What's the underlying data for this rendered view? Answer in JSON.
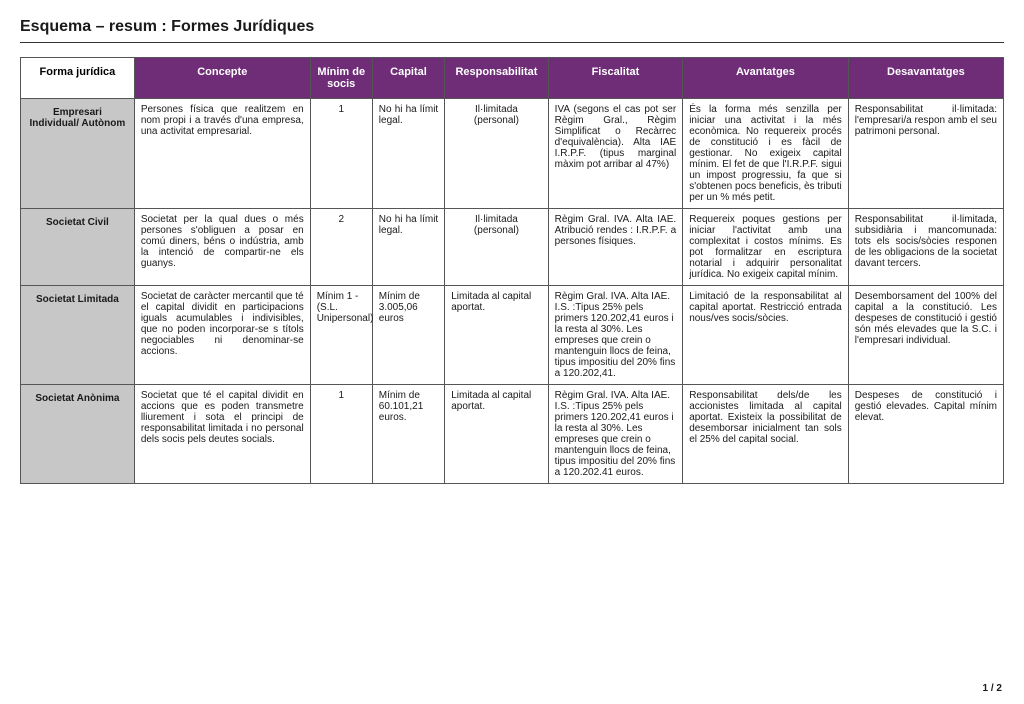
{
  "title": "Esquema – resum : Formes Jurídiques",
  "pager": "1 / 2",
  "headers": {
    "forma": "Forma jurídica",
    "concepte": "Concepte",
    "minim": "Mínim de socis",
    "capital": "Capital",
    "respons": "Responsabilitat",
    "fiscal": "Fiscalitat",
    "avant": "Avantatges",
    "desav": "Desavantatges"
  },
  "rows": [
    {
      "forma": "Empresari Individual/ Autònom",
      "concepte": "Persones física que realitzem en nom propi i a través d'una empresa, una activitat empresarial.",
      "minim": "1",
      "capital": "No hi ha límit legal.",
      "respons": "Il·limitada (personal)",
      "fiscal": "IVA (segons el cas pot ser Règim Gral., Règim Simplificat o Recàrrec d'equivalència). Alta IAE I.R.P.F. (tipus marginal màxim pot arribar al 47%)",
      "avant": "És la forma més senzilla per iniciar una activitat i la més econòmica. No requereix procés de constitució i es fàcil de gestionar. No exigeix capital mínim. El fet de que l'I.R.P.F. sigui un impost progressiu, fa que si s'obtenen pocs beneficis, ès tributi per un % més petit.",
      "desav": "Responsabilitat il·limitada: l'empresari/a respon amb el seu patrimoni personal."
    },
    {
      "forma": "Societat Civil",
      "concepte": "Societat per la qual dues o més persones s'obliguen a posar en comú diners, béns o indústria, amb la intenció de compartir-ne els guanys.",
      "minim": "2",
      "capital": "No hi ha límit legal.",
      "respons": "Il·limitada (personal)",
      "fiscal": "Règim Gral. IVA. Alta IAE. Atribució rendes : I.R.P.F. a persones físiques.",
      "avant": "Requereix poques gestions per iniciar l'activitat amb una complexitat i costos mínims. Es pot formalitzar en escriptura notarial i adquirir personalitat jurídica. No exigeix capital mínim.",
      "desav": "Responsabilitat il·limitada, subsidiària i mancomunada: tots els socis/sòcies responen de les obligacions de la societat davant tercers."
    },
    {
      "forma": "Societat Limitada",
      "concepte": "Societat de caràcter mercantil que té el capital dividit en participacions iguals acumulables i indivisibles, que no poden incorporar-se s títols negociables ni denominar-se accions.",
      "minim": "Mínim 1 - (S.L. Unipersonal)",
      "capital": "Mínim de 3.005,06 euros",
      "respons": "Limitada al capital aportat.",
      "fiscal": "Règim Gral. IVA. Alta IAE. I.S. :Tipus 25% pels primers 120.202,41 euros i la resta al 30%. Les empreses que crein o mantenguin llocs de feina, tipus impositiu del 20% fins a 120.202,41.",
      "avant": "Limitació de la responsabilitat al capital aportat. Restricció entrada nous/ves socis/sòcies.",
      "desav": "Desemborsament del 100% del capital a la constitució. Les despeses de constitució i gestió són més elevades que la S.C. i l'empresari individual."
    },
    {
      "forma": "Societat Anònima",
      "concepte": "Societat que té el capital dividit en accions que es poden transmetre lliurement i sota el principi de responsabilitat limitada i no personal dels socis pels deutes socials.",
      "minim": "1",
      "capital": "Mínim de 60.101,21 euros.",
      "respons": "Limitada al capital aportat.",
      "fiscal": "Règim Gral. IVA. Alta IAE. I.S. :Tipus 25% pels primers 120.202,41 euros i la resta al 30%. Les empreses que crein o mantenguin llocs de feina, tipus impositiu del 20% fins a 120.202.41 euros.",
      "avant": "Responsabilitat dels/de les accionistes limitada al capital aportat. Existeix la possibilitat de desemborsar inicialment tan sols el 25% del capital social.",
      "desav": "Despeses de constitució i gestió elevades. Capital mínim elevat."
    }
  ]
}
